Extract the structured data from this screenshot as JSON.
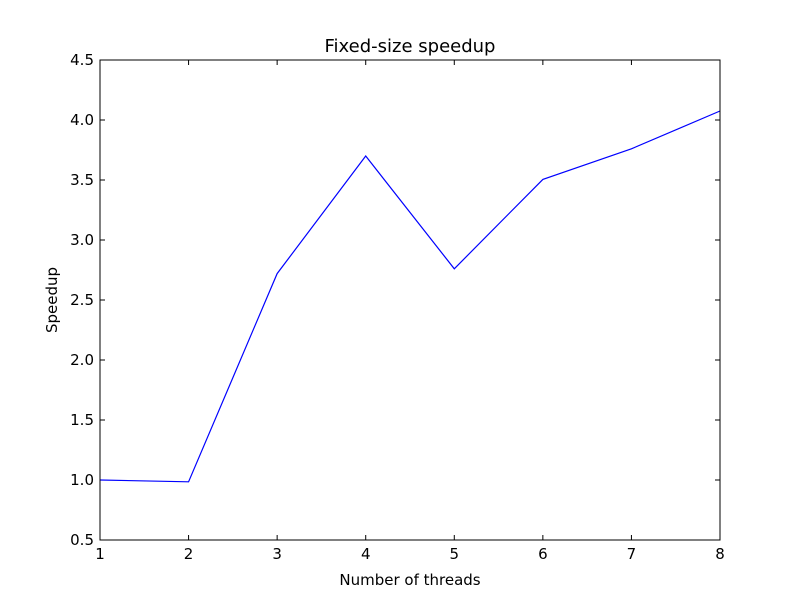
{
  "chart_data": {
    "type": "line",
    "title": "Fixed-size speedup",
    "xlabel": "Number of threads",
    "ylabel": "Speedup",
    "xlim": [
      1,
      8
    ],
    "ylim": [
      0.5,
      4.5
    ],
    "xticks": [
      "1",
      "2",
      "3",
      "4",
      "5",
      "6",
      "7",
      "8"
    ],
    "yticks": [
      "0.5",
      "1.0",
      "1.5",
      "2.0",
      "2.5",
      "3.0",
      "3.5",
      "4.0",
      "4.5"
    ],
    "grid": false,
    "series": [
      {
        "color": "#0000ff",
        "x": [
          1,
          2,
          3,
          4,
          5,
          6,
          7,
          8
        ],
        "values": [
          1.0,
          0.985,
          2.72,
          3.7,
          2.76,
          3.505,
          3.76,
          4.075
        ]
      }
    ]
  }
}
